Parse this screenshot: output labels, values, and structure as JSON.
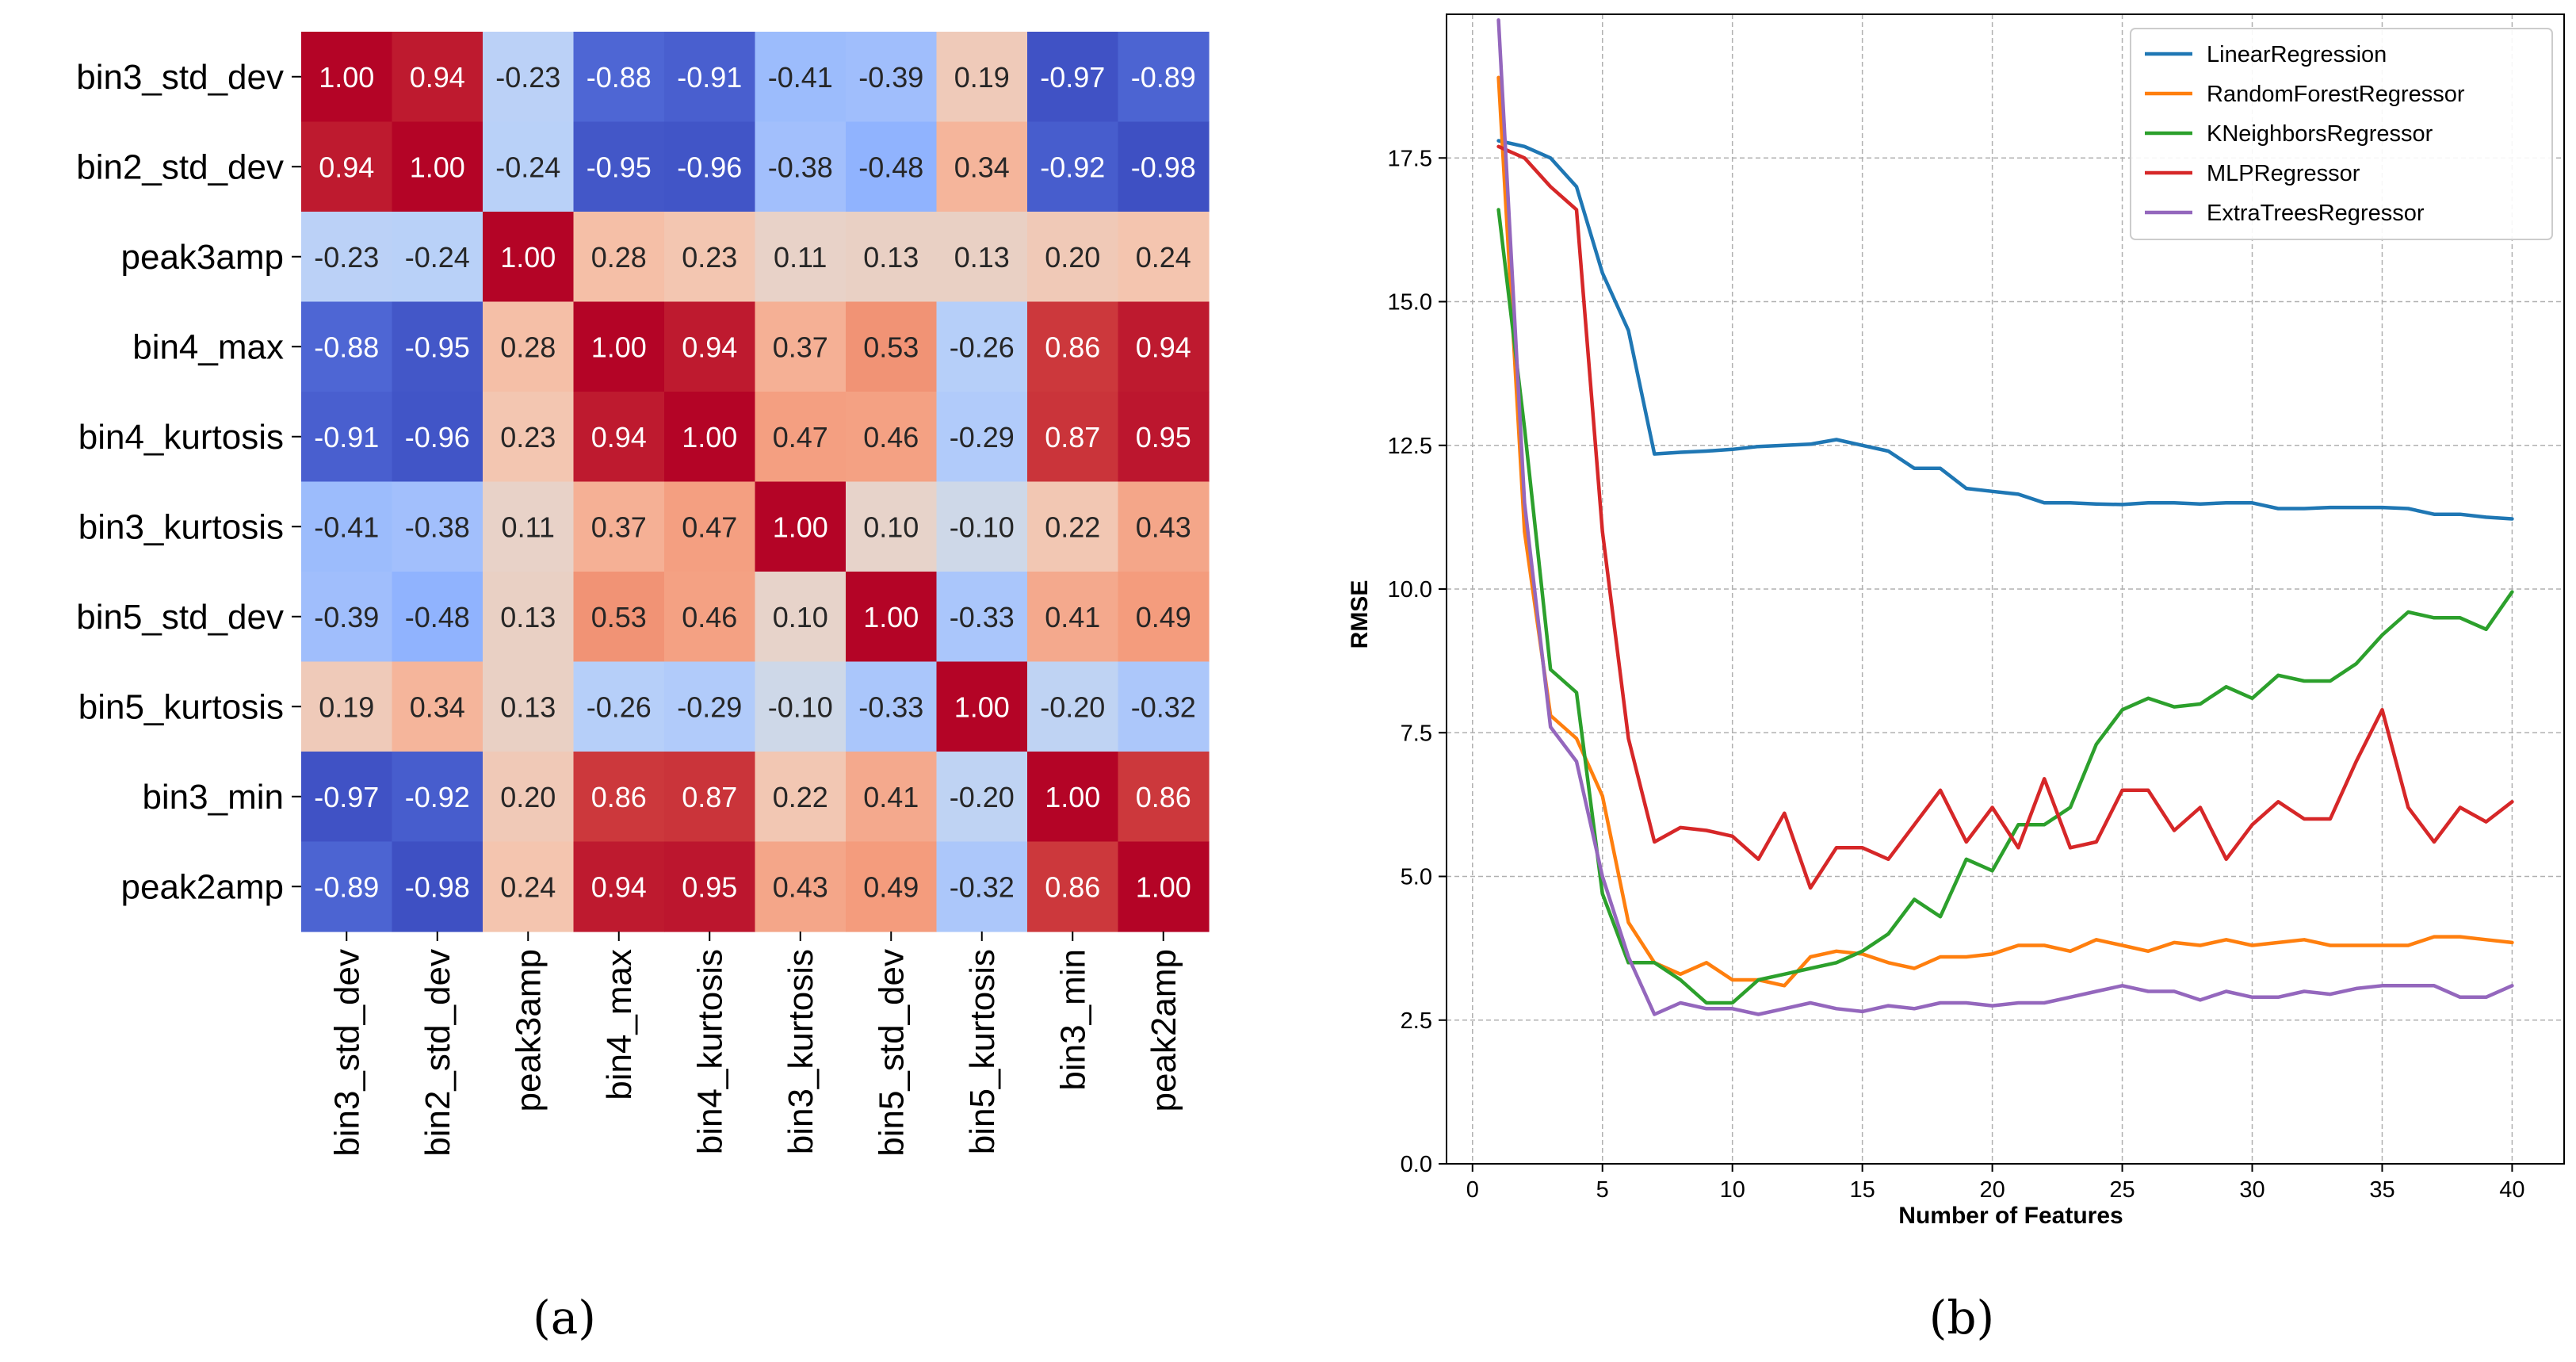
{
  "panels": {
    "a_label": "(a)",
    "b_label": "(b)"
  },
  "chart_data": [
    {
      "type": "heatmap",
      "title": "",
      "rows": [
        "bin3_std_dev",
        "bin2_std_dev",
        "peak3amp",
        "bin4_max",
        "bin4_kurtosis",
        "bin3_kurtosis",
        "bin5_std_dev",
        "bin5_kurtosis",
        "bin3_min",
        "peak2amp"
      ],
      "cols": [
        "bin3_std_dev",
        "bin2_std_dev",
        "peak3amp",
        "bin4_max",
        "bin4_kurtosis",
        "bin3_kurtosis",
        "bin5_std_dev",
        "bin5_kurtosis",
        "bin3_min",
        "peak2amp"
      ],
      "values": [
        [
          1.0,
          0.94,
          -0.23,
          -0.88,
          -0.91,
          -0.41,
          -0.39,
          0.19,
          -0.97,
          -0.89
        ],
        [
          0.94,
          1.0,
          -0.24,
          -0.95,
          -0.96,
          -0.38,
          -0.48,
          0.34,
          -0.92,
          -0.98
        ],
        [
          -0.23,
          -0.24,
          1.0,
          0.28,
          0.23,
          0.11,
          0.13,
          0.13,
          0.2,
          0.24
        ],
        [
          -0.88,
          -0.95,
          0.28,
          1.0,
          0.94,
          0.37,
          0.53,
          -0.26,
          0.86,
          0.94
        ],
        [
          -0.91,
          -0.96,
          0.23,
          0.94,
          1.0,
          0.47,
          0.46,
          -0.29,
          0.87,
          0.95
        ],
        [
          -0.41,
          -0.38,
          0.11,
          0.37,
          0.47,
          1.0,
          0.1,
          -0.1,
          0.22,
          0.43
        ],
        [
          -0.39,
          -0.48,
          0.13,
          0.53,
          0.46,
          0.1,
          1.0,
          -0.33,
          0.41,
          0.49
        ],
        [
          0.19,
          0.34,
          0.13,
          -0.26,
          -0.29,
          -0.1,
          -0.33,
          1.0,
          -0.2,
          -0.32
        ],
        [
          -0.97,
          -0.92,
          0.2,
          0.86,
          0.87,
          0.22,
          0.41,
          -0.2,
          1.0,
          0.86
        ],
        [
          -0.89,
          -0.98,
          0.24,
          0.94,
          0.95,
          0.43,
          0.49,
          -0.32,
          0.86,
          1.0
        ]
      ],
      "colormap": "coolwarm"
    },
    {
      "type": "line",
      "title": "",
      "xlabel": "Number of Features",
      "ylabel": "RMSE",
      "xlim": [
        -1,
        42
      ],
      "ylim": [
        0,
        20.0
      ],
      "xticks": [
        0,
        5,
        10,
        15,
        20,
        25,
        30,
        35,
        40
      ],
      "yticks": [
        0.0,
        2.5,
        5.0,
        7.5,
        10.0,
        12.5,
        15.0,
        17.5
      ],
      "grid": true,
      "legend": "top-right",
      "x": [
        1,
        2,
        3,
        4,
        5,
        6,
        7,
        8,
        9,
        10,
        11,
        12,
        13,
        14,
        15,
        16,
        17,
        18,
        19,
        20,
        21,
        22,
        23,
        24,
        25,
        26,
        27,
        28,
        29,
        30,
        31,
        32,
        33,
        34,
        35,
        36,
        37,
        38,
        39,
        40
      ],
      "series": [
        {
          "name": "LinearRegression",
          "color": "#1f77b4",
          "values": [
            17.8,
            17.7,
            17.5,
            17.0,
            15.5,
            14.5,
            12.35,
            12.38,
            12.4,
            12.43,
            12.48,
            12.5,
            12.52,
            12.6,
            12.5,
            12.4,
            12.1,
            12.1,
            11.75,
            11.7,
            11.65,
            11.5,
            11.5,
            11.48,
            11.47,
            11.5,
            11.5,
            11.48,
            11.5,
            11.5,
            11.4,
            11.4,
            11.42,
            11.42,
            11.42,
            11.4,
            11.3,
            11.3,
            11.25,
            11.22
          ]
        },
        {
          "name": "RandomForestRegressor",
          "color": "#ff7f0e",
          "values": [
            18.9,
            11.0,
            7.8,
            7.4,
            6.4,
            4.2,
            3.5,
            3.3,
            3.5,
            3.2,
            3.2,
            3.1,
            3.6,
            3.7,
            3.65,
            3.5,
            3.4,
            3.6,
            3.6,
            3.65,
            3.8,
            3.8,
            3.7,
            3.9,
            3.8,
            3.7,
            3.85,
            3.8,
            3.9,
            3.8,
            3.85,
            3.9,
            3.8,
            3.8,
            3.8,
            3.8,
            3.95,
            3.95,
            3.9,
            3.85
          ]
        },
        {
          "name": "KNeighborsRegressor",
          "color": "#2ca02c",
          "values": [
            16.6,
            12.8,
            8.6,
            8.2,
            4.7,
            3.5,
            3.5,
            3.2,
            2.8,
            2.8,
            3.2,
            3.3,
            3.4,
            3.5,
            3.7,
            4.0,
            4.6,
            4.3,
            5.3,
            5.1,
            5.9,
            5.9,
            6.2,
            7.3,
            7.9,
            8.1,
            7.95,
            8.0,
            8.3,
            8.1,
            8.5,
            8.4,
            8.4,
            8.7,
            9.2,
            9.6,
            9.5,
            9.5,
            9.3,
            9.95
          ]
        },
        {
          "name": "MLPRegressor",
          "color": "#d62728",
          "values": [
            17.7,
            17.5,
            17.0,
            16.6,
            11.0,
            7.4,
            5.6,
            5.85,
            5.8,
            5.7,
            5.3,
            6.1,
            4.8,
            5.5,
            5.5,
            5.3,
            5.9,
            6.5,
            5.6,
            6.2,
            5.5,
            6.7,
            5.5,
            5.6,
            6.5,
            6.5,
            5.8,
            6.2,
            5.3,
            5.9,
            6.3,
            6.0,
            6.0,
            7.0,
            7.9,
            6.2,
            5.6,
            6.2,
            5.95,
            6.3
          ]
        },
        {
          "name": "ExtraTreesRegressor",
          "color": "#9467bd",
          "values": [
            19.9,
            11.5,
            7.6,
            7.0,
            5.0,
            3.6,
            2.6,
            2.8,
            2.7,
            2.7,
            2.6,
            2.7,
            2.8,
            2.7,
            2.65,
            2.75,
            2.7,
            2.8,
            2.8,
            2.75,
            2.8,
            2.8,
            2.9,
            3.0,
            3.1,
            3.0,
            3.0,
            2.85,
            3.0,
            2.9,
            2.9,
            3.0,
            2.95,
            3.05,
            3.1,
            3.1,
            3.1,
            2.9,
            2.9,
            3.1
          ]
        }
      ]
    }
  ]
}
